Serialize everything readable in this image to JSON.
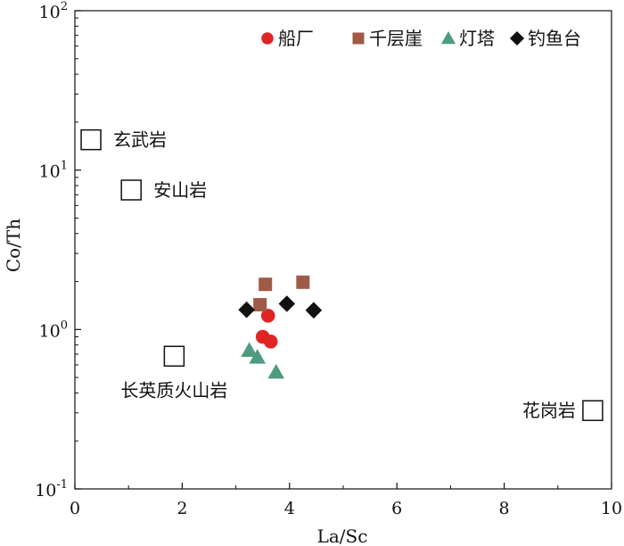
{
  "chart_data": {
    "type": "scatter",
    "xlabel": "La/Sc",
    "ylabel": "Co/Th",
    "xlim": [
      0,
      10
    ],
    "ylim": [
      0.1,
      100
    ],
    "yscale": "log",
    "x_ticks": [
      "0",
      "2",
      "4",
      "6",
      "8",
      "10"
    ],
    "y_ticks": [
      {
        "base": "10",
        "exp": "-1"
      },
      {
        "base": "10",
        "exp": "0"
      },
      {
        "base": "10",
        "exp": "1"
      },
      {
        "base": "10",
        "exp": "2"
      }
    ],
    "legend_position": "top-right",
    "series": [
      {
        "name": "船厂",
        "marker": "circle",
        "color": "#e02424",
        "points": [
          [
            3.6,
            1.22
          ],
          [
            3.5,
            0.9
          ],
          [
            3.65,
            0.84
          ]
        ]
      },
      {
        "name": "千层崖",
        "marker": "square",
        "color": "#a05a48",
        "points": [
          [
            3.55,
            1.92
          ],
          [
            4.25,
            1.98
          ],
          [
            3.45,
            1.43
          ]
        ]
      },
      {
        "name": "灯塔",
        "marker": "triangle",
        "color": "#4e9c7e",
        "points": [
          [
            3.25,
            0.74
          ],
          [
            3.4,
            0.67
          ],
          [
            3.75,
            0.54
          ]
        ]
      },
      {
        "name": "钓鱼台",
        "marker": "diamond",
        "color": "#111111",
        "points": [
          [
            3.2,
            1.33
          ],
          [
            3.95,
            1.45
          ],
          [
            4.45,
            1.32
          ]
        ]
      }
    ],
    "references": [
      {
        "label": "玄武岩",
        "x": 0.3,
        "y": 15.5,
        "label_side": "right"
      },
      {
        "label": "安山岩",
        "x": 1.05,
        "y": 7.5,
        "label_side": "right"
      },
      {
        "label": "长英质火山岩",
        "x": 1.85,
        "y": 0.68,
        "label_side": "below"
      },
      {
        "label": "花岗岩",
        "x": 9.65,
        "y": 0.31,
        "label_side": "left"
      }
    ]
  }
}
